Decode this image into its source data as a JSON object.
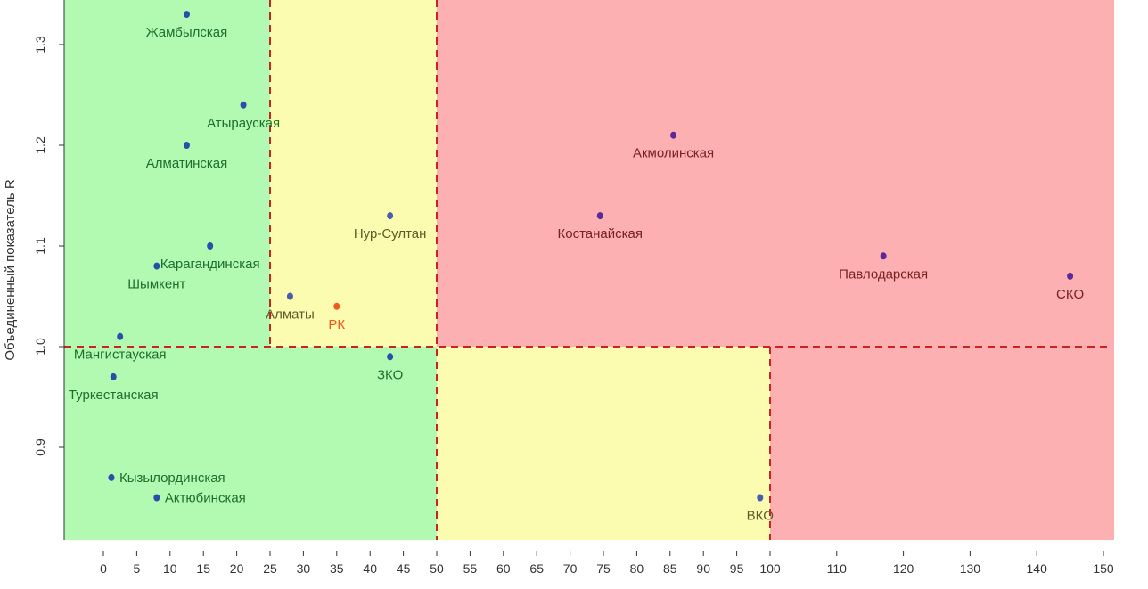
{
  "chart_data": {
    "type": "scatter",
    "ylabel": "Объединенный показатель R",
    "xlabel": "",
    "xlim": [
      -6,
      152
    ],
    "ylim": [
      0.81,
      1.345
    ],
    "x_ticks": [
      0,
      5,
      10,
      15,
      20,
      25,
      30,
      35,
      40,
      45,
      50,
      55,
      60,
      65,
      70,
      75,
      80,
      85,
      90,
      95,
      100,
      110,
      120,
      130,
      140,
      150
    ],
    "y_ticks": [
      0.9,
      1.0,
      1.1,
      1.2,
      1.3
    ],
    "x_breakpoints": [
      25,
      50,
      100
    ],
    "y_threshold": 1.0,
    "zones": [
      {
        "x0": -6,
        "x1": 25,
        "y0": 1.0,
        "y1": 1.345,
        "color": "#b2fab2"
      },
      {
        "x0": 25,
        "x1": 50,
        "y0": 1.0,
        "y1": 1.345,
        "color": "#fcfcb0"
      },
      {
        "x0": 50,
        "x1": 152,
        "y0": 1.0,
        "y1": 1.345,
        "color": "#fcb0b2"
      },
      {
        "x0": -6,
        "x1": 50,
        "y0": 0.81,
        "y1": 1.0,
        "color": "#b2fab2"
      },
      {
        "x0": 50,
        "x1": 100,
        "y0": 0.81,
        "y1": 1.0,
        "color": "#fcfcb0"
      },
      {
        "x0": 100,
        "x1": 152,
        "y0": 0.81,
        "y1": 1.0,
        "color": "#fcb0b2"
      }
    ],
    "grid": false,
    "legend": "none",
    "colors": {
      "green_label": "#1e6e2e",
      "olive_label": "#5c5c2a",
      "red_label": "#7a2020",
      "highlight": "#f05a1e",
      "dashed_line": "#cc2222",
      "point": "#2b4fa8",
      "point_dark": "#5a2a9a"
    },
    "points": [
      {
        "name": "Жамбылская",
        "x": 12.5,
        "y": 1.33,
        "label_pos": "below",
        "label_color": "#1e6e2e",
        "point_color": "#2b4fa8"
      },
      {
        "name": "Атырауская",
        "x": 21,
        "y": 1.24,
        "label_pos": "below",
        "label_color": "#1e6e2e",
        "point_color": "#2b4fa8"
      },
      {
        "name": "Алматинская",
        "x": 12.5,
        "y": 1.2,
        "label_pos": "below",
        "label_color": "#1e6e2e",
        "point_color": "#2b4fa8"
      },
      {
        "name": "Нур-Султан",
        "x": 43,
        "y": 1.13,
        "label_pos": "below",
        "label_color": "#5c5c2a",
        "point_color": "#4a5cb0"
      },
      {
        "name": "Акмолинская",
        "x": 85.5,
        "y": 1.21,
        "label_pos": "below",
        "label_color": "#7a2020",
        "point_color": "#5a2a9a"
      },
      {
        "name": "Костанайская",
        "x": 74.5,
        "y": 1.13,
        "label_pos": "below",
        "label_color": "#7a2020",
        "point_color": "#5a2a9a"
      },
      {
        "name": "Карагандинская",
        "x": 16,
        "y": 1.1,
        "label_pos": "below",
        "label_color": "#1e6e2e",
        "point_color": "#2b4fa8"
      },
      {
        "name": "Шымкент",
        "x": 8,
        "y": 1.08,
        "label_pos": "below",
        "label_color": "#1e6e2e",
        "point_color": "#2b4fa8"
      },
      {
        "name": "Павлодарская",
        "x": 117,
        "y": 1.09,
        "label_pos": "below",
        "label_color": "#7a2020",
        "point_color": "#5a2a9a"
      },
      {
        "name": "СКО",
        "x": 145,
        "y": 1.07,
        "label_pos": "below",
        "label_color": "#7a2020",
        "point_color": "#5a2a9a"
      },
      {
        "name": "Алматы",
        "x": 28,
        "y": 1.05,
        "label_pos": "below",
        "label_color": "#5c5c2a",
        "point_color": "#4a5cb0"
      },
      {
        "name": "РК",
        "x": 35,
        "y": 1.04,
        "label_pos": "below",
        "label_color": "#f05a1e",
        "point_color": "#f05a1e"
      },
      {
        "name": "Мангистауская",
        "x": 2.5,
        "y": 1.01,
        "label_pos": "below",
        "label_color": "#1e6e2e",
        "point_color": "#2b4fa8"
      },
      {
        "name": "ЗКО",
        "x": 43,
        "y": 0.99,
        "label_pos": "below",
        "label_color": "#1e6e2e",
        "point_color": "#2b4fa8"
      },
      {
        "name": "Туркестанская",
        "x": 1.5,
        "y": 0.97,
        "label_pos": "below",
        "label_color": "#1e6e2e",
        "point_color": "#2b4fa8"
      },
      {
        "name": "Кызылординская",
        "x": 1.2,
        "y": 0.87,
        "label_pos": "right",
        "label_color": "#1e6e2e",
        "point_color": "#2b4fa8"
      },
      {
        "name": "Актюбинская",
        "x": 8,
        "y": 0.85,
        "label_pos": "right",
        "label_color": "#1e6e2e",
        "point_color": "#2b4fa8"
      },
      {
        "name": "ВКО",
        "x": 98.5,
        "y": 0.85,
        "label_pos": "below",
        "label_color": "#5c5c2a",
        "point_color": "#4a5cb0"
      }
    ]
  }
}
